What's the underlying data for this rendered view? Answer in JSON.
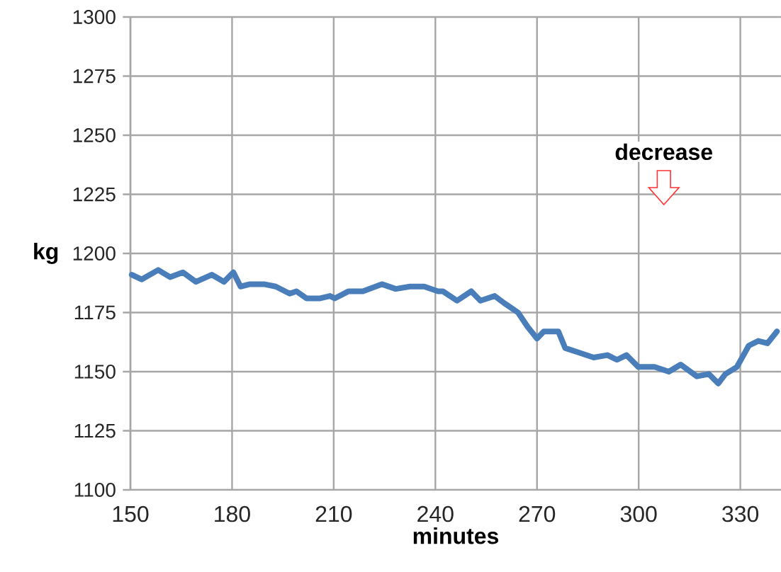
{
  "chart_data": {
    "type": "line",
    "xlabel": "minutes",
    "ylabel": "kg",
    "x": [
      150.4,
      153.3,
      158.2,
      161.7,
      165.5,
      169.3,
      174,
      177.6,
      180.4,
      182.5,
      185.3,
      189.4,
      192.9,
      197,
      199,
      202,
      206,
      208.9,
      210.3,
      214.4,
      218.6,
      224.2,
      228.3,
      232.5,
      236.7,
      240.8,
      242.2,
      246.4,
      250.6,
      253.3,
      257.5,
      260.3,
      264.4,
      267.2,
      270,
      272,
      276.3,
      278.3,
      282.5,
      286.7,
      290.8,
      293.6,
      296.4,
      299.9,
      304.7,
      308.9,
      312.4,
      317.2,
      320.7,
      323.5,
      325.6,
      329,
      332.5,
      335.3,
      338,
      340.8
    ],
    "series": [
      {
        "color": "#4a7ebb",
        "values": [
          1191,
          1189,
          1193,
          1190,
          1192,
          1188,
          1191,
          1188,
          1192,
          1186,
          1187,
          1187,
          1186,
          1183,
          1184,
          1181,
          1181,
          1182,
          1181,
          1184,
          1184,
          1187,
          1185,
          1186,
          1186,
          1184,
          1184,
          1180,
          1184,
          1180,
          1182,
          1179,
          1175,
          1169,
          1164,
          1167,
          1167,
          1160,
          1158,
          1156,
          1157,
          1155,
          1157,
          1152,
          1152,
          1150,
          1153,
          1148,
          1149,
          1145,
          1149,
          1152,
          1161,
          1163,
          1162,
          1167
        ]
      }
    ],
    "xlim": [
      150,
      342
    ],
    "ylim": [
      1100,
      1300
    ],
    "xticks": [
      150,
      180,
      210,
      240,
      270,
      300,
      330
    ],
    "yticks": [
      1100,
      1125,
      1150,
      1175,
      1200,
      1225,
      1250,
      1275,
      1300
    ],
    "grid": true,
    "marker": "none",
    "line_style": "solid",
    "annotations": [
      "decrease"
    ]
  }
}
